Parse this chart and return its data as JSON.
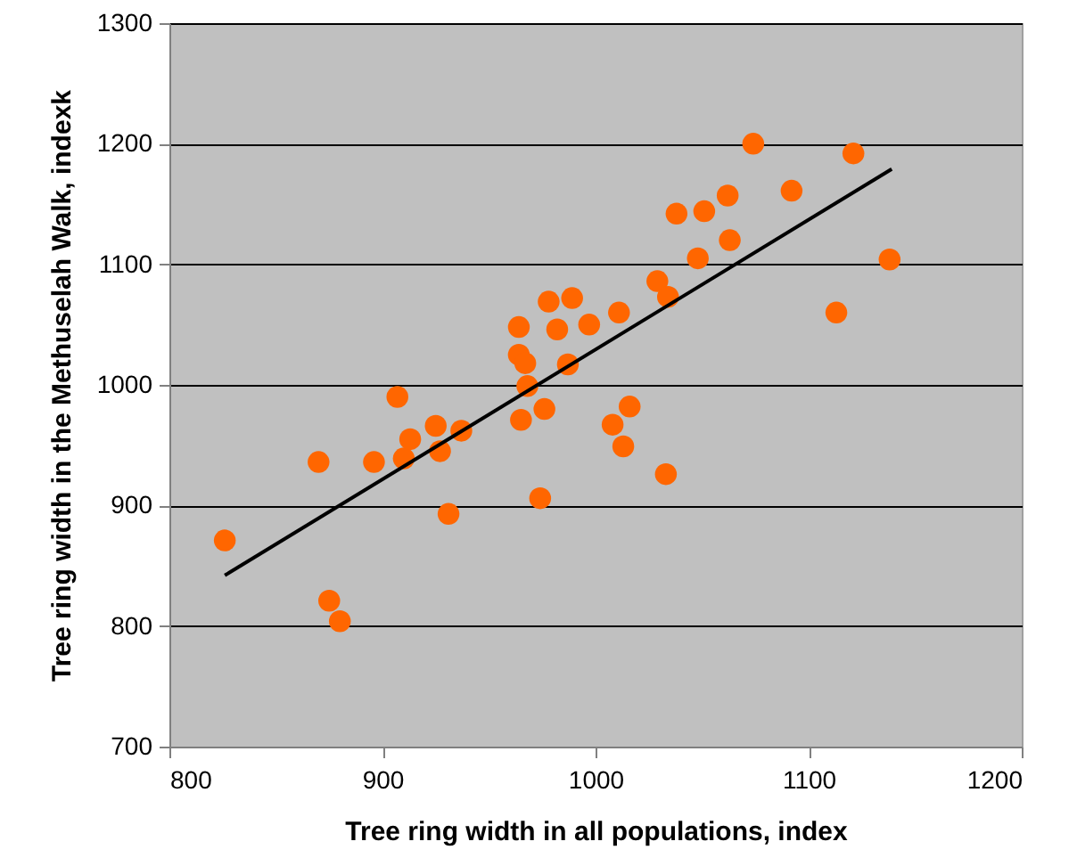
{
  "chart_data": {
    "type": "scatter",
    "xlabel": "Tree ring width in all populations, index",
    "ylabel": "Tree ring width in the Methuselah Walk, indexk",
    "xlim": [
      800,
      1200
    ],
    "xticks": [
      800,
      900,
      1000,
      1100,
      1200
    ],
    "ylim": [
      700,
      1300
    ],
    "yticks": [
      700,
      800,
      900,
      1000,
      1100,
      1200,
      1300
    ],
    "grid": "y",
    "marker": "circle",
    "series": [
      {
        "color": "#ff6600",
        "x": [
          826,
          870,
          875,
          880,
          896,
          907,
          910,
          913,
          925,
          927,
          931,
          937,
          964,
          964,
          967,
          965,
          968,
          974,
          976,
          978,
          982,
          989,
          987,
          997,
          1008,
          1011,
          1013,
          1016,
          1029,
          1033,
          1034,
          1038,
          1048,
          1051,
          1062,
          1063,
          1074,
          1092,
          1113,
          1121,
          1138
        ],
        "values": [
          871,
          936,
          821,
          804,
          936,
          990,
          939,
          955,
          966,
          945,
          893,
          962,
          1048,
          1025,
          1018,
          971,
          999,
          906,
          980,
          1069,
          1046,
          1072,
          1017,
          1050,
          967,
          1060,
          949,
          982,
          1086,
          926,
          1073,
          1142,
          1105,
          1144,
          1157,
          1120,
          1200,
          1161,
          1060,
          1192,
          1104
        ]
      },
      {
        "type": "line",
        "color": "#000000",
        "marker": "none",
        "x": [
          826,
          1139
        ],
        "values": [
          842,
          1179
        ]
      }
    ]
  }
}
